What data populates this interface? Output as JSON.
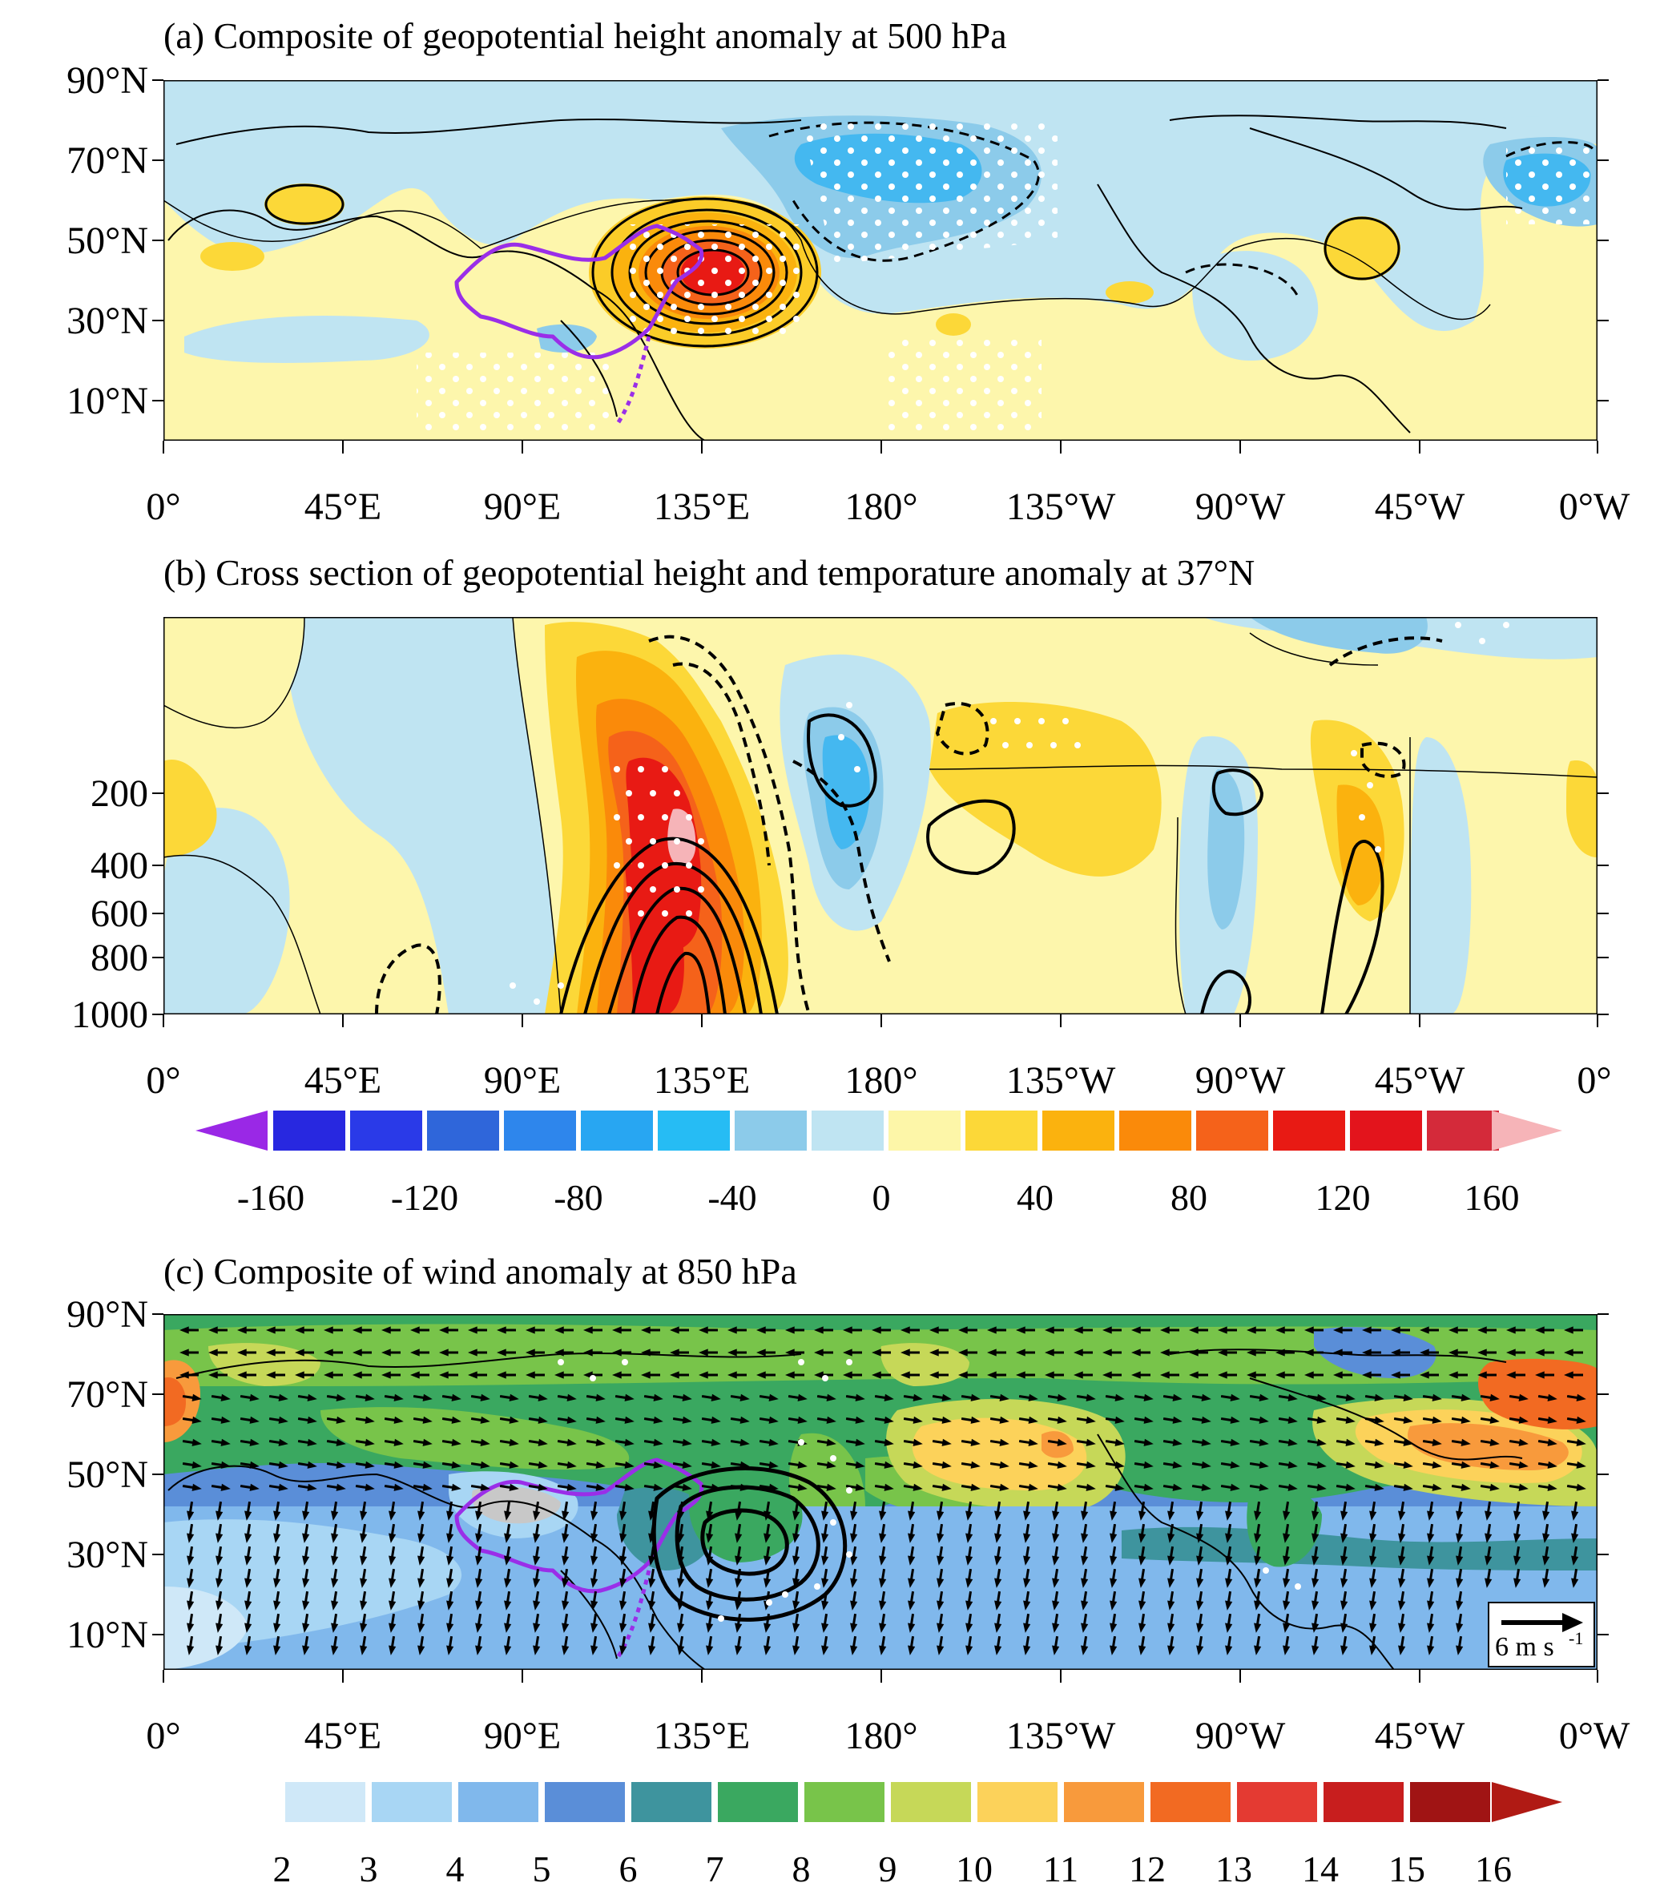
{
  "panel_a": {
    "title": "(a) Composite of geopotential height anomaly at 500 hPa",
    "lat_labels": [
      "90°N",
      "70°N",
      "50°N",
      "30°N",
      "10°N"
    ],
    "lon_labels": [
      "0°",
      "45°E",
      "90°E",
      "135°E",
      "180°",
      "135°W",
      "90°W",
      "45°W",
      "0°W"
    ]
  },
  "panel_b": {
    "title": "(b) Cross section of geopotential height and temporature anomaly at 37°N",
    "pressure_labels": [
      "200",
      "400",
      "600",
      "800",
      "1000"
    ],
    "lon_labels": [
      "0°",
      "45°E",
      "90°E",
      "135°E",
      "180°",
      "135°W",
      "90°W",
      "45°W",
      "0°"
    ]
  },
  "colorbar_1": {
    "labels": [
      "-160",
      "-120",
      "-80",
      "-40",
      "0",
      "40",
      "80",
      "120",
      "160"
    ],
    "colors": [
      "#2828e0",
      "#2a3ae8",
      "#2f66da",
      "#2e86ec",
      "#28a6f2",
      "#26bcf4",
      "#8ccbea",
      "#bfe4f2",
      "#fdf6a8",
      "#fcd838",
      "#fbb20e",
      "#fa8a0a",
      "#f5621a",
      "#e81a14",
      "#e3141c",
      "#d42a3a"
    ],
    "low_arrow": "#9a28e6",
    "high_arrow": "#f6b4b8"
  },
  "panel_c": {
    "title": "(c) Composite of wind anomaly at 850 hPa",
    "lat_labels": [
      "90°N",
      "70°N",
      "50°N",
      "30°N",
      "10°N"
    ],
    "lon_labels": [
      "0°",
      "45°E",
      "90°E",
      "135°E",
      "180°",
      "135°W",
      "90°W",
      "45°W",
      "0°W"
    ],
    "reference_vector": "6 m s",
    "reference_vector_exp": "-1"
  },
  "colorbar_2": {
    "labels": [
      "2",
      "3",
      "4",
      "5",
      "6",
      "7",
      "8",
      "9",
      "10",
      "11",
      "12",
      "13",
      "14",
      "15",
      "16"
    ],
    "colors": [
      "#cfe8f8",
      "#a8d6f4",
      "#80b8ec",
      "#5a8ed8",
      "#3e949e",
      "#3aa860",
      "#78c44a",
      "#c6d858",
      "#fcd25a",
      "#f89a3c",
      "#f26a22",
      "#e43a32",
      "#c81e1e",
      "#a01414"
    ],
    "high_arrow": "#b01a14"
  },
  "map_colors": {
    "light_yellow": "#fdf6ac",
    "light_blue": "#bfe4f2",
    "mid_blue": "#8ccbea",
    "blue": "#44b8f0",
    "orange": "#fbb20e",
    "red": "#e81a14",
    "china_border": "#9a2ee8"
  }
}
